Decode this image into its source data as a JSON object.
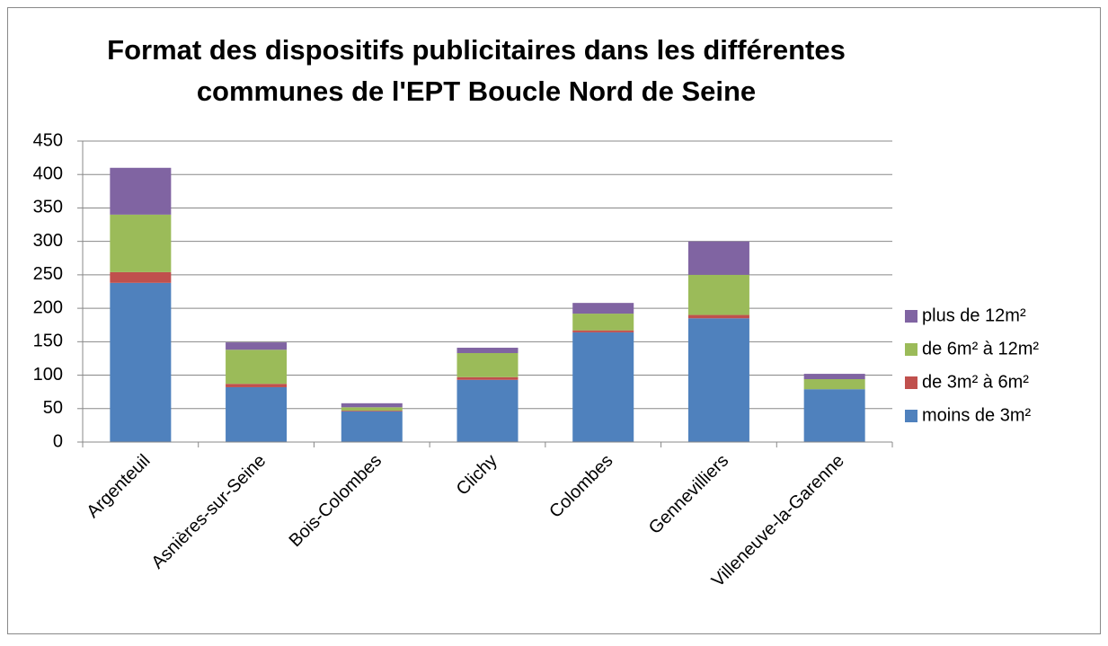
{
  "chart_data": {
    "type": "stacked_bar",
    "title": [
      "Format des dispositifs publicitaires dans les différentes",
      "communes de l'EPT Boucle Nord de Seine"
    ],
    "categories": [
      "Argenteuil",
      "Asnières-sur-Seine",
      "Bois-Colombes",
      "Clichy",
      "Colombes",
      "Gennevilliers",
      "Villeneuve-la-Garenne"
    ],
    "series": [
      {
        "name": "moins de 3m²",
        "color": "#4f81bd",
        "values": [
          238,
          82,
          46,
          93,
          164,
          185,
          79
        ]
      },
      {
        "name": "de 3m² à 6m²",
        "color": "#c0504d",
        "values": [
          16,
          5,
          1,
          4,
          3,
          5,
          0
        ]
      },
      {
        "name": "de 6m² à 12m²",
        "color": "#9bbb59",
        "values": [
          86,
          51,
          5,
          36,
          25,
          60,
          15
        ]
      },
      {
        "name": "plus de 12m²",
        "color": "#8064a2",
        "values": [
          70,
          11,
          6,
          8,
          16,
          50,
          8
        ]
      }
    ],
    "ylim": [
      0,
      450
    ],
    "yticks": [
      0,
      50,
      100,
      150,
      200,
      250,
      300,
      350,
      400,
      450
    ],
    "grid": true,
    "legend": "right"
  }
}
